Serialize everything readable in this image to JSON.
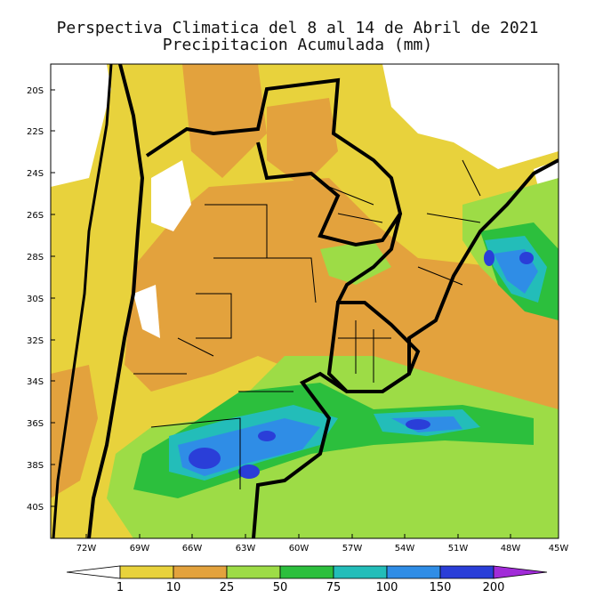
{
  "title": {
    "line1": "Perspectiva Climatica del 8 al 14 de Abril de 2021",
    "line2": "Precipitacion Acumulada (mm)"
  },
  "axes": {
    "lat_labels": [
      "20S",
      "22S",
      "24S",
      "26S",
      "28S",
      "30S",
      "32S",
      "34S",
      "36S",
      "38S",
      "40S"
    ],
    "lon_labels": [
      "72W",
      "69W",
      "66W",
      "63W",
      "60W",
      "57W",
      "54W",
      "51W",
      "48W",
      "45W"
    ]
  },
  "colorbar": {
    "labels": [
      "1",
      "10",
      "25",
      "50",
      "75",
      "100",
      "150",
      "200"
    ],
    "colors": [
      "#ffffff",
      "#e8d23c",
      "#e3a23d",
      "#9ddc46",
      "#2cbf3d",
      "#23bdb9",
      "#2f8de6",
      "#2a3ed8",
      "#a12bd8"
    ]
  },
  "legend_colors": {
    "white": "#ffffff",
    "lt_1_10": "#e8d23c",
    "r10_25": "#e3a23d",
    "r25_50": "#9ddc46",
    "r50_75": "#2cbf3d",
    "r75_100": "#23bdb9",
    "r100_150": "#2f8de6",
    "r150_200": "#2a3ed8",
    "gt200": "#a12bd8"
  }
}
